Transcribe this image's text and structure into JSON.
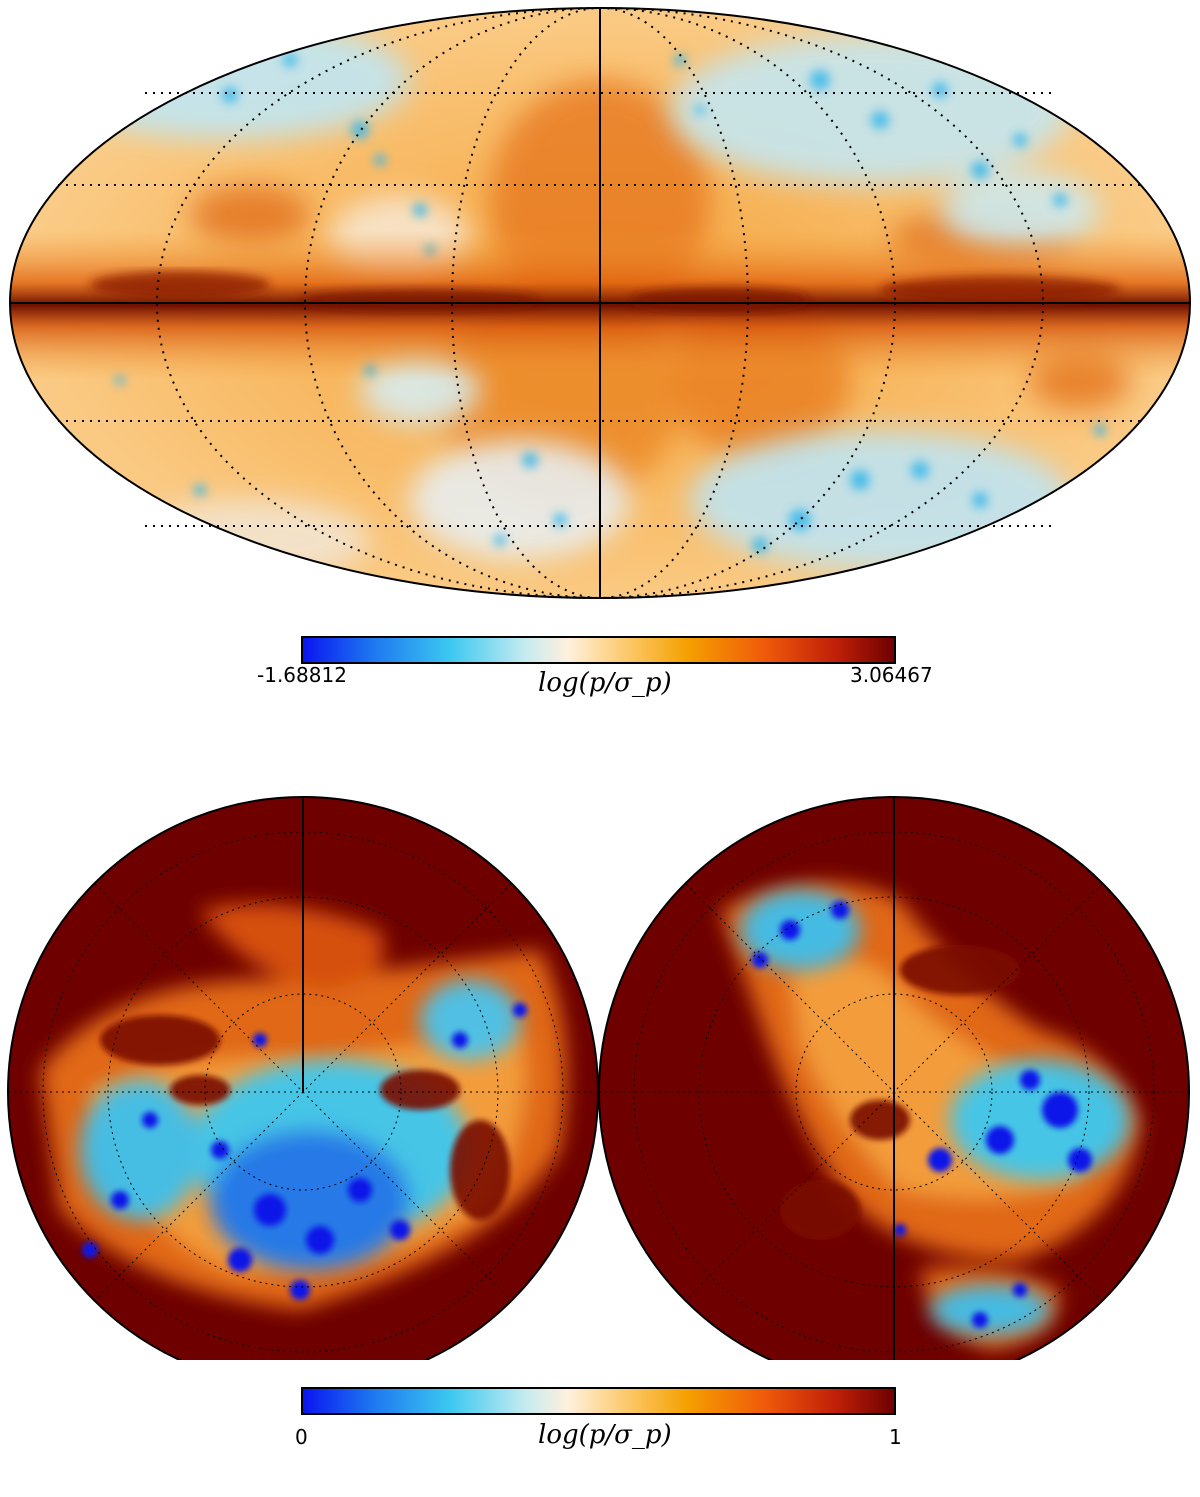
{
  "colorbar_colors": {
    "stops": [
      "#0a14f0",
      "#1e78f0",
      "#3cc8f0",
      "#c8ecf0",
      "#fff0dc",
      "#fcc868",
      "#f5a000",
      "#f05a0a",
      "#c02008",
      "#6e0000"
    ]
  },
  "top_map": {
    "projection": "mollweide",
    "colorbar": {
      "min_label": "-1.68812",
      "max_label": "3.06467",
      "quantity_label": "log(p/σ_p)"
    }
  },
  "bottom_map": {
    "projection": "orthographic",
    "hemispheres": [
      "north",
      "south"
    ],
    "colorbar": {
      "min_label": "0",
      "max_label": "1",
      "quantity_label": "log(p/σ_p)"
    }
  }
}
